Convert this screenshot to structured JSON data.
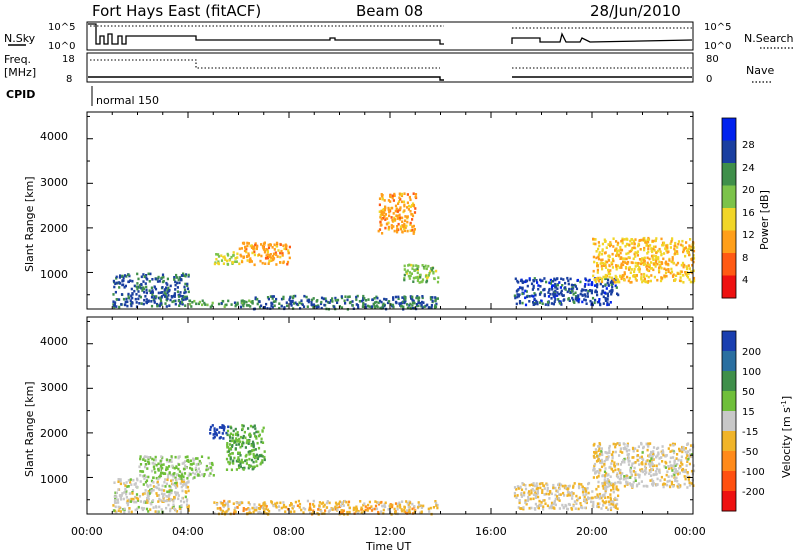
{
  "header": {
    "station": "Fort Hays East (fitACF)",
    "beam": "Beam 08",
    "date": "28/Jun/2010"
  },
  "strips": {
    "nsky_label": "N.Sky",
    "nsky_ticks": [
      "10^5",
      "10^0"
    ],
    "nsearch_label": "N.Search",
    "nsearch_ticks": [
      "10^5",
      "10^0"
    ],
    "freq_label_line1": "Freq.",
    "freq_label_line2": "[MHz]",
    "freq_ticks": [
      "18",
      "8"
    ],
    "nave_label": "Nave",
    "nave_ticks": [
      "80",
      "0"
    ],
    "cpid_label": "CPID",
    "cpid_value": "normal 150"
  },
  "axes": {
    "ylabel": "Slant Range [km]",
    "yticks": [
      "4000",
      "3000",
      "2000",
      "1000"
    ],
    "xlabel": "Time UT",
    "xticks": [
      "00:00",
      "04:00",
      "08:00",
      "12:00",
      "16:00",
      "20:00",
      "00:00"
    ]
  },
  "colorbars": {
    "power": {
      "label": "Power [dB]",
      "ticks": [
        "28",
        "24",
        "20",
        "16",
        "12",
        "8",
        "4"
      ],
      "colors": [
        "#0022ee",
        "#1a3fa0",
        "#3f8f4a",
        "#7cc34a",
        "#f1d628",
        "#ff9f1a",
        "#ff5a14",
        "#ee1111"
      ]
    },
    "velocity": {
      "label_main": "Velocity [m s",
      "label_exp": "-1",
      "label_end": "]",
      "ticks": [
        "200",
        "100",
        "50",
        "15",
        "-15",
        "-50",
        "-100",
        "-200"
      ],
      "colors": [
        "#1a3fb0",
        "#2a6fa0",
        "#3f8f4a",
        "#6fbf3a",
        "#c8c8c8",
        "#f0b429",
        "#ff8a1a",
        "#ff5010",
        "#ee1111"
      ]
    }
  },
  "chart_data": [
    {
      "type": "heatmap",
      "title": "",
      "quantity": "Power [dB]",
      "xlabel": "Time UT",
      "ylabel": "Slant Range [km]",
      "x_unit": "hours UT",
      "xlim": [
        0,
        24
      ],
      "ylim": [
        180,
        4600
      ],
      "color_range": [
        0,
        32
      ],
      "data_gap_hours": [
        14.0,
        16.9
      ],
      "regions": [
        {
          "t": [
            1.0,
            4.0
          ],
          "r": [
            250,
            1000
          ],
          "value": 25
        },
        {
          "t": [
            4.0,
            6.5
          ],
          "r": [
            250,
            400
          ],
          "value": 22
        },
        {
          "t": [
            6.5,
            13.9
          ],
          "r": [
            200,
            500
          ],
          "value": 24
        },
        {
          "t": [
            5.0,
            6.0
          ],
          "r": [
            1200,
            1500
          ],
          "value": 16
        },
        {
          "t": [
            6.0,
            8.0
          ],
          "r": [
            1200,
            1700
          ],
          "value": 10
        },
        {
          "t": [
            11.5,
            13.0
          ],
          "r": [
            1900,
            2800
          ],
          "value": 10
        },
        {
          "t": [
            12.5,
            13.9
          ],
          "r": [
            800,
            1200
          ],
          "value": 18
        },
        {
          "t": [
            16.9,
            21.0
          ],
          "r": [
            300,
            900
          ],
          "value": 26
        },
        {
          "t": [
            20.0,
            24.0
          ],
          "r": [
            800,
            1800
          ],
          "value": 12
        }
      ]
    },
    {
      "type": "heatmap",
      "title": "",
      "quantity": "Velocity [m s-1]",
      "xlabel": "Time UT",
      "ylabel": "Slant Range [km]",
      "x_unit": "hours UT",
      "xlim": [
        0,
        24
      ],
      "ylim": [
        180,
        4600
      ],
      "color_range": [
        -200,
        200
      ],
      "data_gap_hours": [
        14.0,
        16.9
      ],
      "regions": [
        {
          "t": [
            4.8,
            5.6
          ],
          "r": [
            1900,
            2200
          ],
          "value": 200
        },
        {
          "t": [
            5.5,
            7.0
          ],
          "r": [
            1200,
            2200
          ],
          "value": 60
        },
        {
          "t": [
            2.0,
            5.0
          ],
          "r": [
            1000,
            1500
          ],
          "value": 30
        },
        {
          "t": [
            1.0,
            4.0
          ],
          "r": [
            250,
            1000
          ],
          "value": 0
        },
        {
          "t": [
            5.0,
            13.9
          ],
          "r": [
            200,
            500
          ],
          "value": -40
        },
        {
          "t": [
            16.9,
            21.0
          ],
          "r": [
            300,
            900
          ],
          "value": -20
        },
        {
          "t": [
            20.0,
            24.0
          ],
          "r": [
            800,
            1800
          ],
          "value": -10
        }
      ]
    }
  ]
}
